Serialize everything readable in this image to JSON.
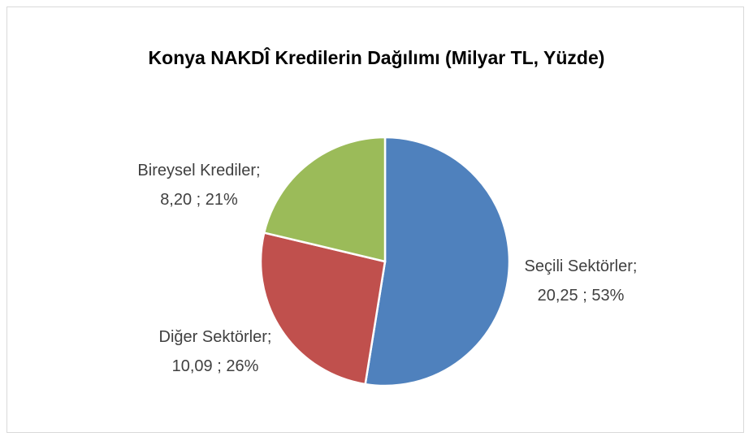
{
  "chart_data": {
    "type": "pie",
    "title": "Konya NAKDÎ Kredilerin Dağılımı (Milyar TL, Yüzde)",
    "categories": [
      "Seçili Sektörler;",
      "Diğer Sektörler;",
      "Bireysel Krediler;"
    ],
    "values": [
      20.25,
      10.09,
      8.2
    ],
    "value_labels": [
      "20,25 ; 53%",
      "10,09 ; 26%",
      "8,20 ; 21%"
    ],
    "colors": [
      "#4f81bd",
      "#c0504d",
      "#9bbb59"
    ]
  }
}
